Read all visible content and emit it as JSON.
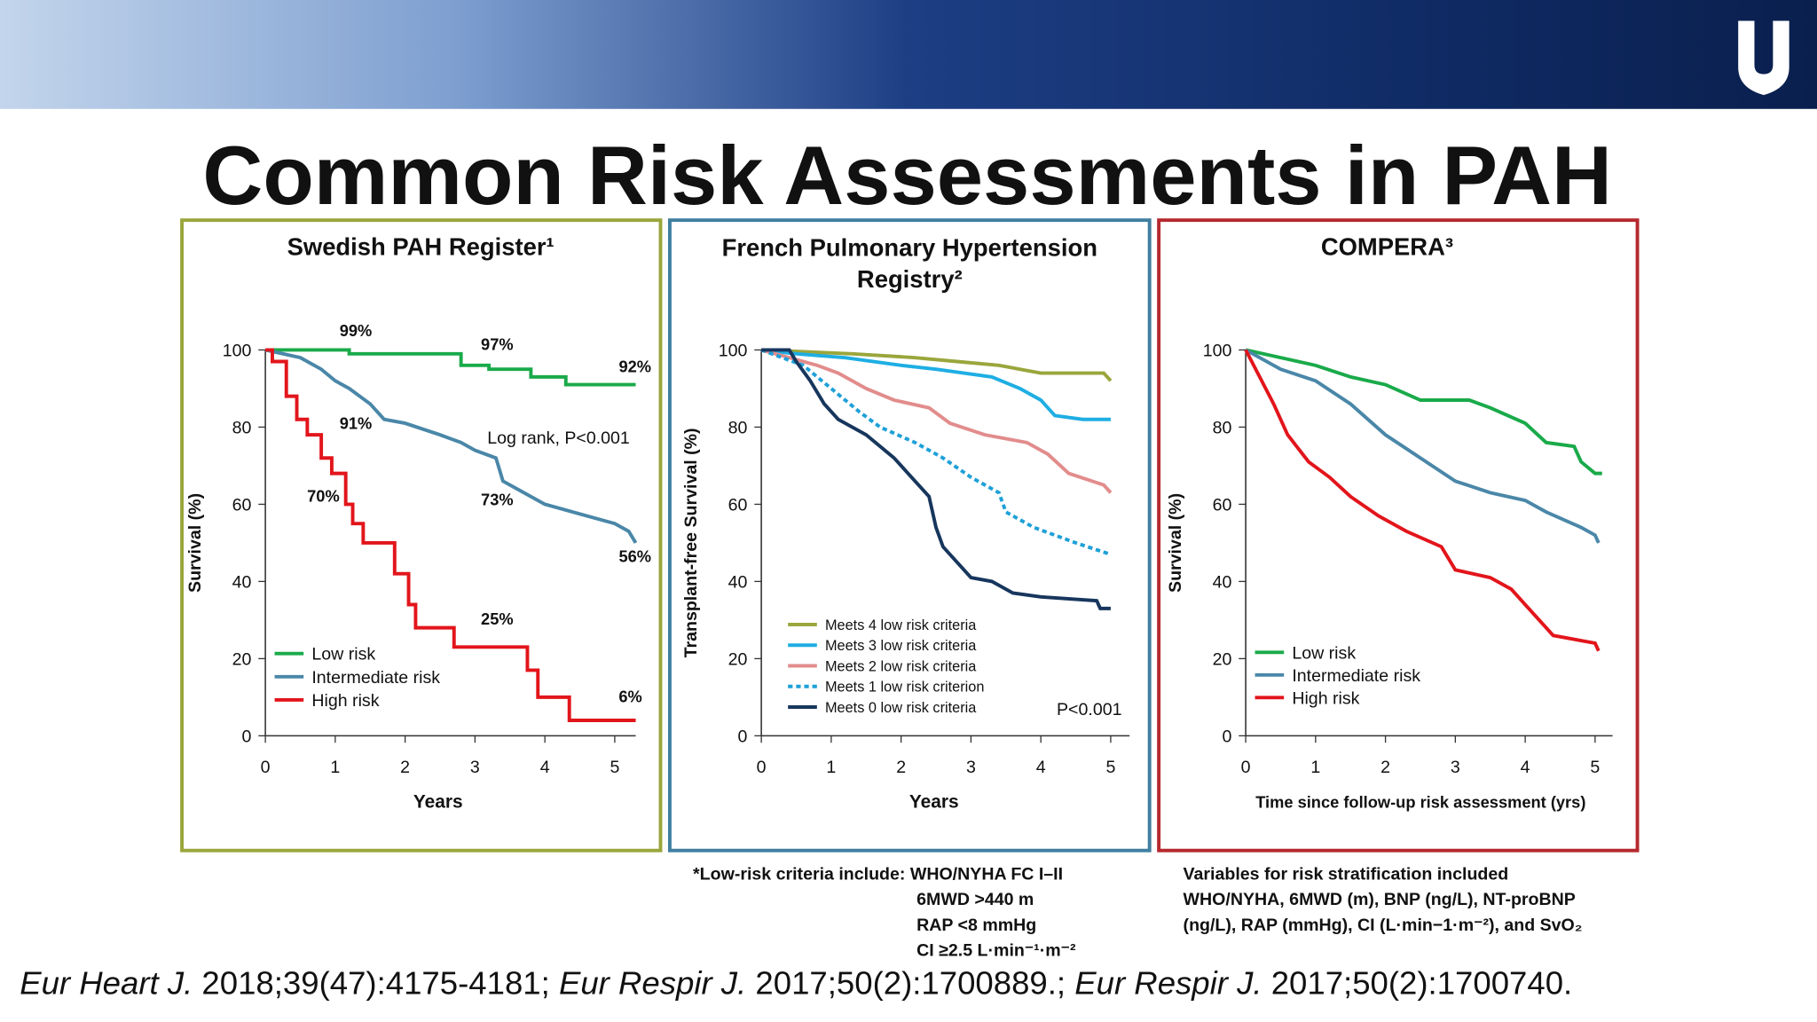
{
  "header": {
    "title": "Common Risk Assessments in PAH"
  },
  "chart_data": [
    {
      "type": "line",
      "title": [
        "Swedish PAH Register¹"
      ],
      "xlabel": "Years",
      "ylabel": "Survival (%)",
      "xlim": [
        0,
        5.3
      ],
      "ylim": [
        0,
        100
      ],
      "xticks": [
        0,
        1,
        2,
        3,
        4,
        5
      ],
      "yticks": [
        0,
        20,
        40,
        60,
        80,
        100
      ],
      "legend": "lower left",
      "annotation": "Log rank, P<0.001",
      "series": [
        {
          "name": "Low risk",
          "color": "#1aaa4a",
          "x": [
            0,
            1.2,
            1.2,
            2.8,
            2.8,
            3.2,
            3.2,
            3.8,
            3.8,
            4.3,
            4.3,
            5.3
          ],
          "values": [
            100,
            100,
            99,
            99,
            96,
            96,
            95,
            95,
            93,
            93,
            91,
            91
          ],
          "milestones": {
            "x": [
              1,
              3,
              5
            ],
            "values": [
              99,
              97,
              92
            ],
            "value_labels": [
              "99%",
              "97%",
              "92%"
            ]
          }
        },
        {
          "name": "Intermediate risk",
          "color": "#4a87a8",
          "x": [
            0,
            0.5,
            0.8,
            1.0,
            1.2,
            1.5,
            1.7,
            2.0,
            2.5,
            2.8,
            3.0,
            3.3,
            3.4,
            3.7,
            4.0,
            4.2,
            4.6,
            5.0,
            5.2,
            5.3
          ],
          "values": [
            100,
            98,
            95,
            92,
            90,
            86,
            82,
            81,
            78,
            76,
            74,
            72,
            66,
            63,
            60,
            59,
            57,
            55,
            53,
            50
          ],
          "milestones": {
            "x": [
              1,
              3,
              5
            ],
            "values": [
              91,
              73,
              56
            ],
            "value_labels": [
              "91%",
              "73%",
              "56%"
            ]
          }
        },
        {
          "name": "High risk",
          "color": "#e2151b",
          "x": [
            0,
            0.1,
            0.1,
            0.3,
            0.3,
            0.45,
            0.45,
            0.6,
            0.6,
            0.8,
            0.8,
            0.95,
            0.95,
            1.15,
            1.15,
            1.25,
            1.25,
            1.4,
            1.4,
            1.85,
            1.85,
            2.05,
            2.05,
            2.15,
            2.15,
            2.7,
            2.7,
            3.75,
            3.75,
            3.9,
            3.9,
            4.35,
            4.35,
            5.3
          ],
          "values": [
            100,
            100,
            97,
            97,
            88,
            88,
            82,
            82,
            78,
            78,
            72,
            72,
            68,
            68,
            60,
            60,
            55,
            55,
            50,
            50,
            42,
            42,
            34,
            34,
            28,
            28,
            23,
            23,
            17,
            17,
            10,
            10,
            4,
            4
          ],
          "milestones": {
            "x": [
              1,
              3,
              5
            ],
            "values": [
              70,
              25,
              6
            ],
            "value_labels": [
              "70%",
              "25%",
              "6%"
            ]
          }
        }
      ]
    },
    {
      "type": "line",
      "title": [
        "French Pulmonary Hypertension",
        "Registry²"
      ],
      "xlabel": "Years",
      "ylabel": "Transplant-free Survival (%)",
      "xlim": [
        0,
        5.27
      ],
      "ylim": [
        0,
        100
      ],
      "xticks": [
        0,
        1,
        2,
        3,
        4,
        5
      ],
      "yticks": [
        0,
        20,
        40,
        60,
        80,
        100
      ],
      "legend": "lower left",
      "annotation": "P<0.001",
      "series": [
        {
          "name": "Meets 4 low risk criteria",
          "color": "#9aa63c",
          "x": [
            0,
            1.3,
            2.2,
            2.8,
            3.4,
            4.0,
            4.9,
            5.0
          ],
          "values": [
            100,
            99,
            98,
            97,
            96,
            94,
            94,
            92
          ]
        },
        {
          "name": "Meets 3 low risk criteria",
          "color": "#1eaee3",
          "x": [
            0,
            0.5,
            1.2,
            2.0,
            2.5,
            3.3,
            3.7,
            4.0,
            4.2,
            4.6,
            5.0
          ],
          "values": [
            100,
            99,
            98,
            96,
            95,
            93,
            90,
            87,
            83,
            82,
            82
          ]
        },
        {
          "name": "Meets 2 low risk criteria",
          "color": "#e28c8c",
          "x": [
            0,
            0.4,
            0.8,
            1.1,
            1.5,
            1.9,
            2.4,
            2.7,
            3.2,
            3.8,
            4.1,
            4.4,
            4.9,
            5.0
          ],
          "values": [
            100,
            98,
            96,
            94,
            90,
            87,
            85,
            81,
            78,
            76,
            73,
            68,
            65,
            63
          ]
        },
        {
          "name": "Meets 1 low risk criterion",
          "color": "#1ea0d8",
          "linestyle": "dotted",
          "x": [
            0,
            0.6,
            1.0,
            1.4,
            1.7,
            2.2,
            2.6,
            3.0,
            3.4,
            3.5,
            3.9,
            4.5,
            5.0
          ],
          "values": [
            100,
            96,
            90,
            84,
            80,
            76,
            72,
            67,
            63,
            58,
            54,
            50,
            47
          ]
        },
        {
          "name": "Meets 0 low risk criteria",
          "color": "#17365d",
          "x": [
            0,
            0.4,
            0.5,
            0.7,
            0.9,
            1.1,
            1.5,
            1.9,
            2.1,
            2.4,
            2.5,
            2.6,
            2.8,
            3.0,
            3.3,
            3.6,
            4.0,
            4.8,
            4.85,
            5.0
          ],
          "values": [
            100,
            100,
            97,
            92,
            86,
            82,
            78,
            72,
            68,
            62,
            54,
            49,
            45,
            41,
            40,
            37,
            36,
            35,
            33,
            33
          ]
        }
      ]
    },
    {
      "type": "line",
      "title": [
        "COMPERA³"
      ],
      "xlabel": "Time since follow-up risk assessment (yrs)",
      "ylabel": "Survival (%)",
      "xlim": [
        0,
        5.25
      ],
      "ylim": [
        0,
        100
      ],
      "xticks": [
        0,
        1,
        2,
        3,
        4,
        5
      ],
      "yticks": [
        0,
        20,
        40,
        60,
        80,
        100
      ],
      "legend": "lower left",
      "series": [
        {
          "name": "Low risk",
          "color": "#1aaa4a",
          "x": [
            0,
            0.5,
            1.0,
            1.5,
            2.0,
            2.5,
            3.2,
            3.5,
            4.0,
            4.3,
            4.7,
            4.8,
            5.0,
            5.1
          ],
          "values": [
            100,
            98,
            96,
            93,
            91,
            87,
            87,
            85,
            81,
            76,
            75,
            71,
            68,
            68
          ]
        },
        {
          "name": "Intermediate risk",
          "color": "#4a87a8",
          "x": [
            0,
            0.5,
            1.0,
            1.5,
            2.0,
            2.5,
            3.0,
            3.5,
            4.0,
            4.3,
            4.8,
            5.0,
            5.05
          ],
          "values": [
            100,
            95,
            92,
            86,
            78,
            72,
            66,
            63,
            61,
            58,
            54,
            52,
            50
          ]
        },
        {
          "name": "High risk",
          "color": "#e2151b",
          "x": [
            0,
            0.2,
            0.4,
            0.6,
            0.9,
            1.2,
            1.5,
            1.9,
            2.3,
            2.8,
            3.0,
            3.5,
            3.8,
            4.0,
            4.2,
            4.4,
            5.0,
            5.05
          ],
          "values": [
            100,
            93,
            86,
            78,
            71,
            67,
            62,
            57,
            53,
            49,
            43,
            41,
            38,
            34,
            30,
            26,
            24,
            22
          ]
        }
      ]
    }
  ],
  "footnotes": {
    "low_risk": [
      "*Low-risk criteria include: WHO/NYHA FC I–II",
      "6MWD >440 m",
      "RAP <8 mmHg",
      "CI ≥2.5 L·min⁻¹·m⁻²"
    ],
    "compera": [
      "Variables for risk stratification included",
      "WHO/NYHA, 6MWD (m), BNP (ng/L), NT-proBNP",
      "(ng/L), RAP (mmHg), CI (L·min−1·m⁻²), and SvO₂"
    ]
  },
  "citation": [
    {
      "journal": "Eur Heart J.",
      "detail": " 2018;39(47):4175-4181; "
    },
    {
      "journal": "Eur Respir J.",
      "detail": " 2017;50(2):1700889.; "
    },
    {
      "journal": "Eur Respir J.",
      "detail": " 2017;50(2):1700740."
    }
  ]
}
